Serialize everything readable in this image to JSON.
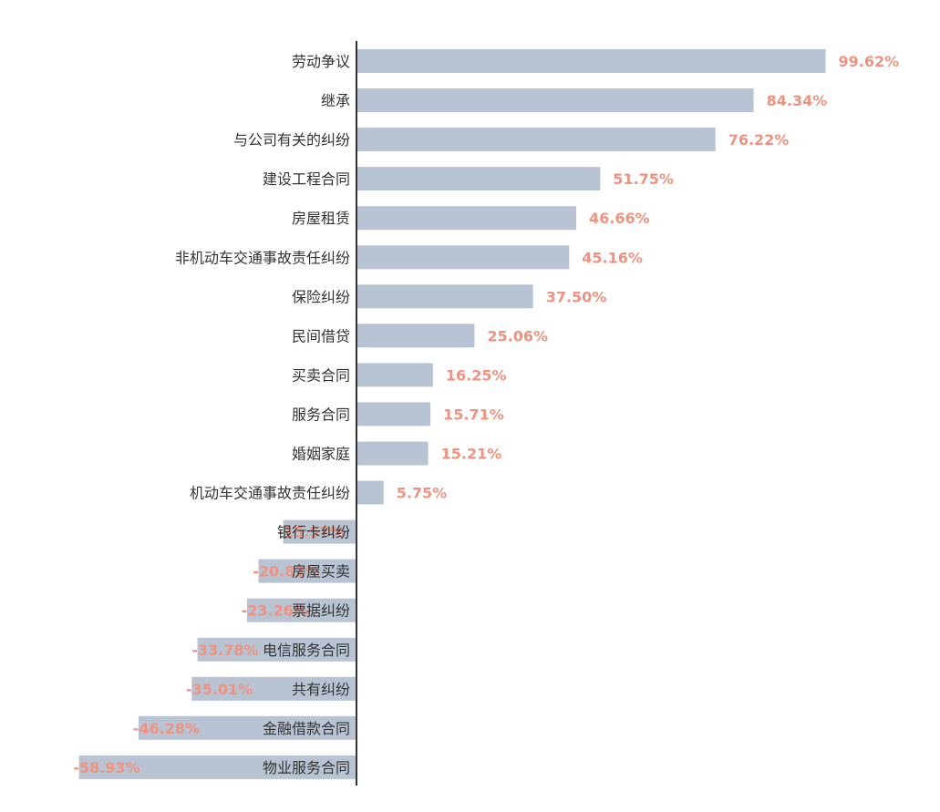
{
  "chart_data": {
    "type": "bar",
    "orientation": "horizontal",
    "categories": [
      "劳动争议",
      "继承",
      "与公司有关的纠纷",
      "建设工程合同",
      "房屋租赁",
      "非机动车交通事故责任纠纷",
      "保险纠纷",
      "民间借贷",
      "买卖合同",
      "服务合同",
      "婚姻家庭",
      "机动车交通事故责任纠纷",
      "银行卡纠纷",
      "房屋买卖",
      "票据纠纷",
      "电信服务合同",
      "共有纠纷",
      "金融借款合同",
      "物业服务合同"
    ],
    "values": [
      99.62,
      84.34,
      76.22,
      51.75,
      46.66,
      45.16,
      37.5,
      25.06,
      16.25,
      15.71,
      15.21,
      5.75,
      -15.57,
      -20.82,
      -23.26,
      -33.78,
      -35.01,
      -46.28,
      -58.93
    ],
    "value_labels": [
      "99.62%",
      "84.34%",
      "76.22%",
      "51.75%",
      "46.66%",
      "45.16%",
      "37.50%",
      "25.06%",
      "16.25%",
      "15.71%",
      "15.21%",
      "5.75%",
      "-15.57%",
      "-20.82%",
      "-23.26%",
      "-33.78%",
      "-35.01%",
      "-46.28%",
      "-58.93%"
    ],
    "title": "",
    "xlabel": "",
    "ylabel": "",
    "grid": false,
    "legend": "none"
  },
  "colors": {
    "bar": "#b8c4d3",
    "value_label": "#f0927f",
    "axis": "#333333",
    "category_label": "#333333"
  }
}
